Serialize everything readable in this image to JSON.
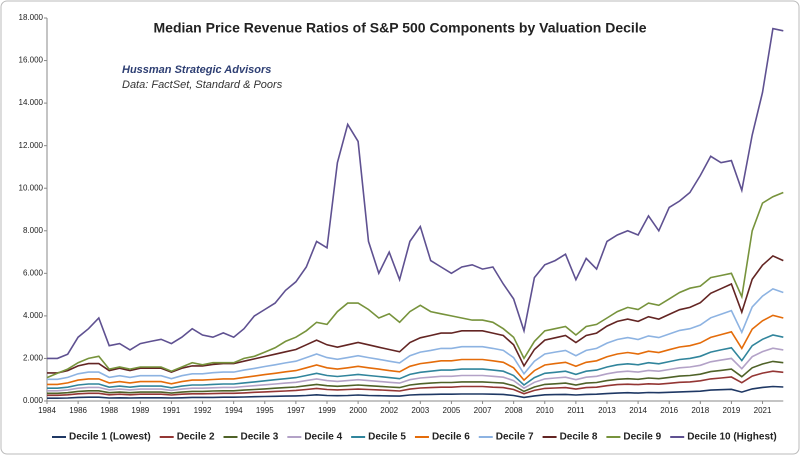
{
  "chart_data": {
    "type": "line",
    "title": "Median Price Revenue Ratios of S&P 500 Components by Valuation Decile",
    "annotations": [
      "Hussman Strategic Advisors",
      "Data: FactSet, Standard & Poors"
    ],
    "categories": [
      "1984",
      null,
      null,
      "1986",
      null,
      null,
      "1988",
      null,
      null,
      "1989",
      null,
      null,
      "1991",
      null,
      null,
      "1992",
      null,
      null,
      "1994",
      null,
      null,
      "1995",
      null,
      null,
      "1997",
      null,
      null,
      "1999",
      null,
      null,
      "2000",
      null,
      null,
      "2002",
      null,
      null,
      "2003",
      null,
      null,
      "2005",
      null,
      null,
      "2007",
      null,
      null,
      "2008",
      null,
      null,
      "2010",
      null,
      null,
      "2011",
      null,
      null,
      "2013",
      null,
      null,
      "2014",
      null,
      null,
      "2016",
      null,
      null,
      "2018",
      null,
      null,
      "2019",
      null,
      null,
      "2021",
      null,
      null
    ],
    "ylim": [
      0,
      18
    ],
    "yticks": [
      {
        "value": 0,
        "label": "0.000"
      },
      {
        "value": 2,
        "label": "2.000"
      },
      {
        "value": 4,
        "label": "4.000"
      },
      {
        "value": 6,
        "label": "6.000"
      },
      {
        "value": 8,
        "label": "8.000"
      },
      {
        "value": 10,
        "label": "10.000"
      },
      {
        "value": 12,
        "label": "12.000"
      },
      {
        "value": 14,
        "label": "14.000"
      },
      {
        "value": 16,
        "label": "16.000"
      },
      {
        "value": 18,
        "label": "18.000"
      }
    ],
    "grid": false,
    "legend": "bottom",
    "series": [
      {
        "name": "Decile 1 (Lowest)",
        "color": "#1f3864",
        "values": [
          0.13,
          0.13,
          0.14,
          0.17,
          0.18,
          0.18,
          0.14,
          0.15,
          0.14,
          0.15,
          0.15,
          0.15,
          0.14,
          0.15,
          0.17,
          0.17,
          0.17,
          0.18,
          0.18,
          0.19,
          0.2,
          0.21,
          0.22,
          0.23,
          0.24,
          0.26,
          0.29,
          0.26,
          0.25,
          0.26,
          0.28,
          0.26,
          0.25,
          0.24,
          0.23,
          0.28,
          0.3,
          0.31,
          0.32,
          0.32,
          0.33,
          0.33,
          0.33,
          0.32,
          0.31,
          0.26,
          0.17,
          0.24,
          0.29,
          0.3,
          0.31,
          0.28,
          0.31,
          0.32,
          0.35,
          0.37,
          0.39,
          0.37,
          0.4,
          0.39,
          0.41,
          0.43,
          0.44,
          0.46,
          0.51,
          0.53,
          0.55,
          0.42,
          0.57,
          0.64,
          0.68,
          0.66
        ]
      },
      {
        "name": "Decile 2",
        "color": "#943634",
        "values": [
          0.27,
          0.27,
          0.29,
          0.34,
          0.36,
          0.36,
          0.29,
          0.32,
          0.29,
          0.32,
          0.32,
          0.32,
          0.28,
          0.32,
          0.34,
          0.34,
          0.35,
          0.36,
          0.36,
          0.38,
          0.41,
          0.43,
          0.45,
          0.47,
          0.5,
          0.54,
          0.59,
          0.54,
          0.52,
          0.54,
          0.56,
          0.54,
          0.52,
          0.5,
          0.47,
          0.56,
          0.61,
          0.63,
          0.65,
          0.65,
          0.68,
          0.68,
          0.68,
          0.65,
          0.63,
          0.54,
          0.34,
          0.5,
          0.59,
          0.61,
          0.63,
          0.56,
          0.63,
          0.65,
          0.72,
          0.77,
          0.79,
          0.77,
          0.81,
          0.79,
          0.83,
          0.88,
          0.9,
          0.95,
          1.04,
          1.08,
          1.13,
          0.86,
          1.17,
          1.31,
          1.4,
          1.35
        ]
      },
      {
        "name": "Decile 3",
        "color": "#4f6228",
        "values": [
          0.36,
          0.36,
          0.39,
          0.45,
          0.48,
          0.48,
          0.39,
          0.42,
          0.39,
          0.42,
          0.42,
          0.42,
          0.37,
          0.42,
          0.45,
          0.45,
          0.47,
          0.48,
          0.48,
          0.51,
          0.54,
          0.57,
          0.6,
          0.63,
          0.66,
          0.72,
          0.78,
          0.72,
          0.69,
          0.72,
          0.75,
          0.72,
          0.69,
          0.66,
          0.63,
          0.75,
          0.81,
          0.84,
          0.87,
          0.87,
          0.9,
          0.9,
          0.9,
          0.87,
          0.84,
          0.72,
          0.45,
          0.66,
          0.78,
          0.81,
          0.84,
          0.75,
          0.84,
          0.87,
          0.96,
          1.02,
          1.05,
          1.02,
          1.08,
          1.05,
          1.11,
          1.17,
          1.2,
          1.26,
          1.38,
          1.44,
          1.5,
          1.14,
          1.56,
          1.74,
          1.86,
          1.8
        ]
      },
      {
        "name": "Decile 4",
        "color": "#b3a2c7",
        "values": [
          0.48,
          0.48,
          0.52,
          0.6,
          0.64,
          0.64,
          0.52,
          0.56,
          0.52,
          0.56,
          0.56,
          0.56,
          0.5,
          0.56,
          0.6,
          0.6,
          0.62,
          0.64,
          0.64,
          0.68,
          0.72,
          0.76,
          0.8,
          0.84,
          0.88,
          0.96,
          1.04,
          0.96,
          0.92,
          0.96,
          1.0,
          0.96,
          0.92,
          0.88,
          0.84,
          1.0,
          1.08,
          1.12,
          1.16,
          1.16,
          1.2,
          1.2,
          1.2,
          1.16,
          1.12,
          0.96,
          0.6,
          0.88,
          1.04,
          1.08,
          1.12,
          1.0,
          1.12,
          1.16,
          1.28,
          1.36,
          1.4,
          1.36,
          1.44,
          1.4,
          1.48,
          1.56,
          1.6,
          1.68,
          1.84,
          1.92,
          2.0,
          1.52,
          2.08,
          2.32,
          2.48,
          2.4
        ]
      },
      {
        "name": "Decile 5",
        "color": "#31859c",
        "values": [
          0.6,
          0.6,
          0.65,
          0.75,
          0.8,
          0.8,
          0.65,
          0.7,
          0.65,
          0.7,
          0.7,
          0.7,
          0.62,
          0.7,
          0.75,
          0.75,
          0.78,
          0.8,
          0.8,
          0.85,
          0.9,
          0.95,
          1.0,
          1.05,
          1.1,
          1.2,
          1.3,
          1.2,
          1.15,
          1.2,
          1.25,
          1.2,
          1.15,
          1.1,
          1.05,
          1.25,
          1.35,
          1.4,
          1.45,
          1.45,
          1.5,
          1.5,
          1.5,
          1.45,
          1.4,
          1.2,
          0.75,
          1.1,
          1.3,
          1.35,
          1.4,
          1.25,
          1.4,
          1.45,
          1.6,
          1.7,
          1.75,
          1.7,
          1.8,
          1.75,
          1.85,
          1.95,
          2.0,
          2.1,
          2.3,
          2.4,
          2.5,
          1.9,
          2.6,
          2.9,
          3.1,
          3.0
        ]
      },
      {
        "name": "Decile 6",
        "color": "#e46c0a",
        "values": [
          0.78,
          0.78,
          0.85,
          0.98,
          1.04,
          1.04,
          0.85,
          0.91,
          0.85,
          0.91,
          0.91,
          0.91,
          0.81,
          0.91,
          0.98,
          0.98,
          1.01,
          1.04,
          1.04,
          1.11,
          1.17,
          1.24,
          1.3,
          1.37,
          1.43,
          1.56,
          1.69,
          1.56,
          1.5,
          1.56,
          1.63,
          1.56,
          1.5,
          1.43,
          1.37,
          1.63,
          1.76,
          1.82,
          1.89,
          1.89,
          1.95,
          1.95,
          1.95,
          1.89,
          1.82,
          1.56,
          0.98,
          1.43,
          1.69,
          1.76,
          1.82,
          1.63,
          1.82,
          1.89,
          2.08,
          2.21,
          2.28,
          2.21,
          2.34,
          2.28,
          2.41,
          2.54,
          2.6,
          2.73,
          2.99,
          3.12,
          3.25,
          2.47,
          3.38,
          3.77,
          4.03,
          3.9
        ]
      },
      {
        "name": "Decile 7",
        "color": "#8db3e2",
        "values": [
          1.02,
          1.02,
          1.11,
          1.28,
          1.36,
          1.36,
          1.11,
          1.19,
          1.11,
          1.19,
          1.19,
          1.19,
          1.05,
          1.19,
          1.28,
          1.28,
          1.33,
          1.36,
          1.36,
          1.45,
          1.53,
          1.62,
          1.7,
          1.79,
          1.87,
          2.04,
          2.21,
          2.04,
          1.96,
          2.04,
          2.13,
          2.04,
          1.96,
          1.87,
          1.79,
          2.13,
          2.3,
          2.38,
          2.47,
          2.47,
          2.55,
          2.55,
          2.55,
          2.47,
          2.38,
          2.04,
          1.28,
          1.87,
          2.21,
          2.3,
          2.38,
          2.13,
          2.38,
          2.47,
          2.72,
          2.89,
          2.98,
          2.89,
          3.06,
          2.98,
          3.15,
          3.32,
          3.4,
          3.57,
          3.91,
          4.08,
          4.25,
          3.23,
          4.42,
          4.93,
          5.27,
          5.1
        ]
      },
      {
        "name": "Decile 8",
        "color": "#632523",
        "values": [
          1.32,
          1.32,
          1.43,
          1.65,
          1.76,
          1.76,
          1.43,
          1.54,
          1.43,
          1.54,
          1.54,
          1.54,
          1.36,
          1.54,
          1.65,
          1.65,
          1.72,
          1.76,
          1.76,
          1.87,
          1.98,
          2.09,
          2.2,
          2.31,
          2.42,
          2.64,
          2.86,
          2.64,
          2.53,
          2.64,
          2.75,
          2.64,
          2.53,
          2.42,
          2.31,
          2.75,
          2.97,
          3.08,
          3.19,
          3.19,
          3.3,
          3.3,
          3.3,
          3.19,
          3.08,
          2.64,
          1.65,
          2.42,
          2.86,
          2.97,
          3.08,
          2.75,
          3.08,
          3.19,
          3.52,
          3.74,
          3.85,
          3.74,
          3.96,
          3.85,
          4.07,
          4.29,
          4.4,
          4.62,
          5.06,
          5.28,
          5.5,
          4.18,
          5.72,
          6.38,
          6.82,
          6.6
        ]
      },
      {
        "name": "Decile 9",
        "color": "#77933c",
        "values": [
          1.1,
          1.3,
          1.5,
          1.8,
          2.0,
          2.1,
          1.5,
          1.6,
          1.5,
          1.6,
          1.6,
          1.6,
          1.4,
          1.6,
          1.8,
          1.7,
          1.8,
          1.8,
          1.8,
          2.0,
          2.1,
          2.3,
          2.5,
          2.8,
          3.0,
          3.3,
          3.7,
          3.6,
          4.2,
          4.6,
          4.6,
          4.3,
          3.9,
          4.1,
          3.7,
          4.2,
          4.5,
          4.2,
          4.1,
          4.0,
          3.9,
          3.8,
          3.8,
          3.7,
          3.4,
          3.0,
          2.0,
          2.8,
          3.3,
          3.4,
          3.5,
          3.1,
          3.5,
          3.6,
          3.9,
          4.2,
          4.4,
          4.3,
          4.6,
          4.5,
          4.8,
          5.1,
          5.3,
          5.4,
          5.8,
          5.9,
          6.0,
          4.9,
          8.0,
          9.3,
          9.6,
          9.8
        ]
      },
      {
        "name": "Decile 10 (Highest)",
        "color": "#5f5191",
        "values": [
          2.0,
          2.0,
          2.2,
          3.0,
          3.4,
          3.9,
          2.6,
          2.7,
          2.4,
          2.7,
          2.8,
          2.9,
          2.7,
          3.0,
          3.4,
          3.1,
          3.0,
          3.2,
          3.0,
          3.4,
          4.0,
          4.3,
          4.6,
          5.2,
          5.6,
          6.3,
          7.5,
          7.2,
          11.2,
          13.0,
          12.2,
          7.5,
          6.0,
          7.0,
          5.7,
          7.5,
          8.2,
          6.6,
          6.3,
          6.0,
          6.3,
          6.4,
          6.2,
          6.3,
          5.5,
          4.8,
          3.3,
          5.8,
          6.4,
          6.6,
          6.9,
          5.7,
          6.7,
          6.2,
          7.5,
          7.8,
          8.0,
          7.8,
          8.7,
          8.0,
          9.1,
          9.4,
          9.8,
          10.6,
          11.5,
          11.2,
          11.3,
          9.9,
          12.5,
          14.5,
          17.5,
          17.4
        ]
      }
    ]
  }
}
